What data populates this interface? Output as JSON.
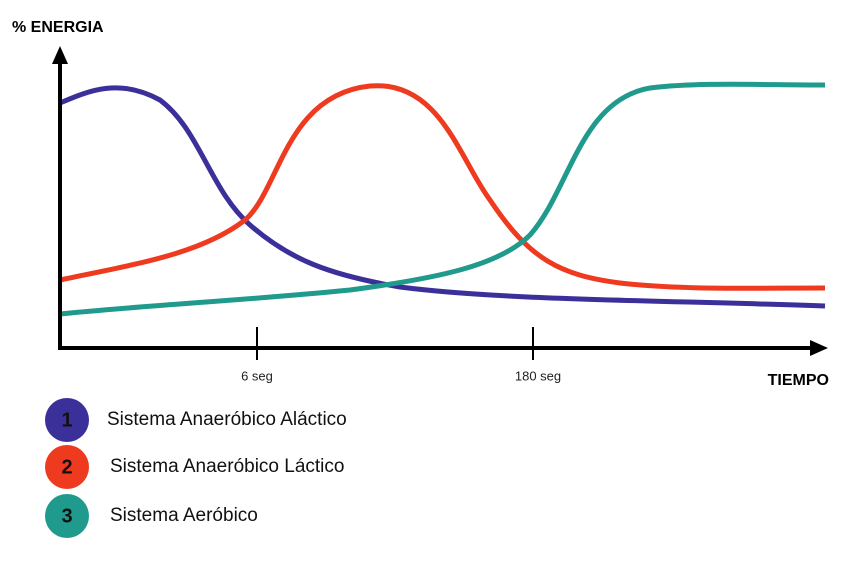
{
  "axes": {
    "y_label": "% ENERGIA",
    "x_label": "TIEMPO",
    "x_marks": [
      "6 seg",
      "180 seg"
    ]
  },
  "legend": [
    {
      "number": "1",
      "label": "Sistema Anaeróbico Aláctico"
    },
    {
      "number": "2",
      "label": "Sistema Anaeróbico Láctico"
    },
    {
      "number": "3",
      "label": "Sistema Aeróbico"
    }
  ]
}
